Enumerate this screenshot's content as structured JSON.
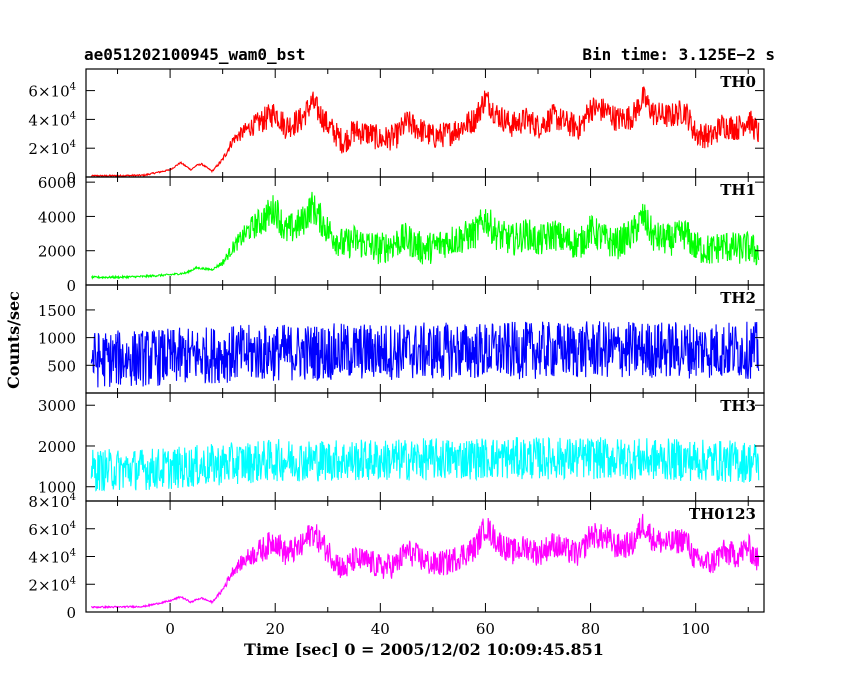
{
  "header": {
    "obs_id": "ae051202100945_wam0_bst",
    "bin_time": "Bin time: 3.125E−2 s"
  },
  "axes": {
    "ylabel": "Counts/sec",
    "xlabel": "Time [sec] 0 = 2005/12/02 10:09:45.851"
  },
  "chart_data": {
    "type": "line",
    "layout": "stacked panels sharing x axis",
    "x_range": [
      -16,
      113
    ],
    "x_ticks": [
      0,
      20,
      40,
      60,
      80,
      100
    ],
    "x_tick_labels": [
      "0",
      "20",
      "40",
      "60",
      "80",
      "100"
    ],
    "panels": [
      {
        "name": "TH0",
        "color": "#ff0000",
        "y_range": [
          0,
          75000
        ],
        "y_ticks": [
          0,
          20000,
          40000,
          60000
        ],
        "y_tick_labels": [
          {
            "m": "",
            "b": "0",
            "e": ""
          },
          {
            "m": "2×",
            "b": "10",
            "e": "4"
          },
          {
            "m": "4×",
            "b": "10",
            "e": "4"
          },
          {
            "m": "6×",
            "b": "10",
            "e": "4"
          }
        ],
        "x": [
          -15,
          -10,
          -5,
          0,
          2,
          4,
          5,
          6,
          8,
          10,
          12,
          15,
          18,
          20,
          22,
          25,
          27,
          30,
          33,
          35,
          38,
          40,
          43,
          45,
          48,
          50,
          53,
          55,
          58,
          60,
          62,
          65,
          68,
          70,
          73,
          75,
          78,
          80,
          83,
          85,
          88,
          90,
          92,
          95,
          98,
          100,
          103,
          105,
          108,
          110,
          112
        ],
        "y": [
          800,
          900,
          1200,
          5000,
          10000,
          5000,
          8000,
          9000,
          4000,
          12000,
          26000,
          34000,
          40000,
          45000,
          35000,
          40000,
          52000,
          36000,
          24000,
          32000,
          30000,
          26000,
          28000,
          38000,
          32000,
          28000,
          30000,
          34000,
          40000,
          55000,
          44000,
          36000,
          40000,
          35000,
          42000,
          38000,
          34000,
          48000,
          46000,
          40000,
          42000,
          55000,
          44000,
          42000,
          46000,
          30000,
          28000,
          36000,
          34000,
          40000,
          30000
        ],
        "noise": 9000
      },
      {
        "name": "TH1",
        "color": "#00ff00",
        "y_range": [
          0,
          6300
        ],
        "y_ticks": [
          0,
          2000,
          4000,
          6000
        ],
        "y_tick_labels": [
          {
            "m": "",
            "b": "0",
            "e": ""
          },
          {
            "m": "",
            "b": "2000",
            "e": ""
          },
          {
            "m": "",
            "b": "4000",
            "e": ""
          },
          {
            "m": "",
            "b": "6000",
            "e": ""
          }
        ],
        "x": [
          -15,
          -10,
          -5,
          0,
          3,
          5,
          8,
          10,
          12,
          15,
          18,
          20,
          22,
          25,
          27,
          30,
          33,
          35,
          38,
          40,
          43,
          45,
          48,
          50,
          53,
          55,
          58,
          60,
          62,
          65,
          68,
          70,
          73,
          75,
          78,
          80,
          83,
          85,
          88,
          90,
          92,
          95,
          98,
          100,
          103,
          105,
          108,
          110,
          112
        ],
        "y": [
          450,
          450,
          500,
          600,
          700,
          1000,
          900,
          1300,
          2200,
          3200,
          3900,
          4500,
          3100,
          3600,
          4600,
          3200,
          2300,
          2600,
          2300,
          2100,
          2500,
          2700,
          2100,
          2200,
          2600,
          2700,
          3000,
          3900,
          3000,
          2600,
          3000,
          2500,
          3000,
          2600,
          2400,
          3200,
          2600,
          2400,
          3000,
          4000,
          2800,
          2600,
          3000,
          2200,
          2000,
          2300,
          2100,
          2200,
          1900
        ],
        "noise": 950
      },
      {
        "name": "TH2",
        "color": "#0000ff",
        "y_range": [
          0,
          1950
        ],
        "y_ticks": [
          500,
          1000,
          1500
        ],
        "y_tick_labels": [
          {
            "m": "",
            "b": "500",
            "e": ""
          },
          {
            "m": "",
            "b": "1000",
            "e": ""
          },
          {
            "m": "",
            "b": "1500",
            "e": ""
          }
        ],
        "x": [
          -15,
          0,
          10,
          20,
          40,
          60,
          80,
          100,
          112
        ],
        "y": [
          600,
          650,
          700,
          730,
          750,
          760,
          780,
          780,
          770
        ],
        "noise": 520
      },
      {
        "name": "TH3",
        "color": "#00ffff",
        "y_range": [
          650,
          3300
        ],
        "y_ticks": [
          1000,
          2000,
          3000
        ],
        "y_tick_labels": [
          {
            "m": "",
            "b": "1000",
            "e": ""
          },
          {
            "m": "",
            "b": "2000",
            "e": ""
          },
          {
            "m": "",
            "b": "3000",
            "e": ""
          }
        ],
        "x": [
          -15,
          0,
          10,
          20,
          40,
          60,
          80,
          100,
          112
        ],
        "y": [
          1400,
          1450,
          1550,
          1650,
          1650,
          1700,
          1700,
          1650,
          1600
        ],
        "noise": 520
      },
      {
        "name": "TH0123",
        "color": "#ff00ff",
        "y_range": [
          0,
          80000
        ],
        "y_ticks": [
          0,
          20000,
          40000,
          60000,
          80000
        ],
        "y_tick_labels": [
          {
            "m": "",
            "b": "0",
            "e": ""
          },
          {
            "m": "2×",
            "b": "10",
            "e": "4"
          },
          {
            "m": "4×",
            "b": "10",
            "e": "4"
          },
          {
            "m": "6×",
            "b": "10",
            "e": "4"
          },
          {
            "m": "8×",
            "b": "10",
            "e": "4"
          }
        ],
        "x": [
          -15,
          -10,
          -5,
          0,
          2,
          4,
          5,
          6,
          8,
          10,
          12,
          15,
          18,
          20,
          22,
          25,
          27,
          30,
          33,
          35,
          38,
          40,
          43,
          45,
          48,
          50,
          53,
          55,
          58,
          60,
          62,
          65,
          68,
          70,
          73,
          75,
          78,
          80,
          83,
          85,
          88,
          90,
          92,
          95,
          98,
          100,
          103,
          105,
          108,
          110,
          112
        ],
        "y": [
          3500,
          3600,
          4000,
          8000,
          11000,
          7000,
          9000,
          10000,
          7000,
          16000,
          30000,
          40000,
          46000,
          52000,
          42000,
          47000,
          58000,
          44000,
          30000,
          38000,
          36000,
          32000,
          34000,
          44000,
          38000,
          34000,
          36000,
          40000,
          46000,
          62000,
          52000,
          43000,
          47000,
          42000,
          49000,
          45000,
          41000,
          56000,
          53000,
          47000,
          49000,
          64000,
          52000,
          49000,
          53000,
          37000,
          35000,
          43000,
          41000,
          47000,
          36000
        ],
        "noise": 9500
      }
    ]
  }
}
